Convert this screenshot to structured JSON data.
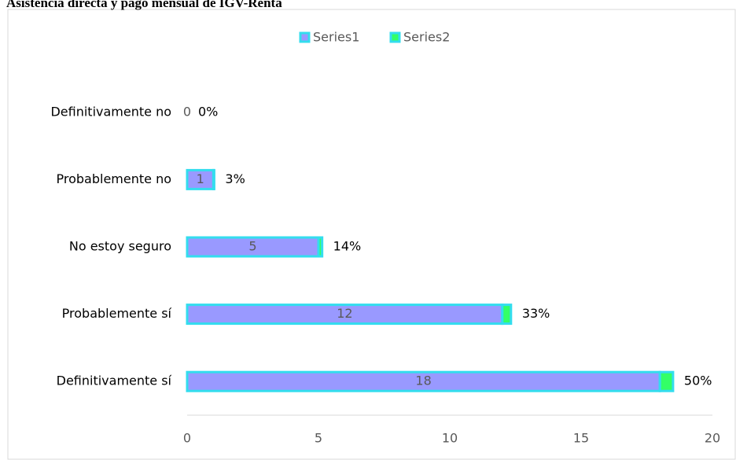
{
  "chart_data": {
    "type": "stacked-horizontal-bar",
    "title": "Asistencia directa y pago mensual de IGV-Renta",
    "categories": [
      "Definitivamente no",
      "Probablemente no",
      "No estoy seguro",
      "Probablemente sí",
      "Definitivamente sí"
    ],
    "series": [
      {
        "name": "Series1",
        "color": "#9999ff",
        "values": [
          0,
          1,
          5,
          12,
          18
        ]
      },
      {
        "name": "Series2",
        "color": "#33ff66",
        "values": [
          0,
          0.03,
          0.14,
          0.33,
          0.5
        ],
        "value_labels": [
          "0%",
          "3%",
          "14%",
          "33%",
          "50%"
        ]
      }
    ],
    "outline_color": "#33ddee",
    "xlim": [
      0,
      20
    ],
    "xticks": [
      0,
      5,
      10,
      15,
      20
    ],
    "legend": "top"
  }
}
